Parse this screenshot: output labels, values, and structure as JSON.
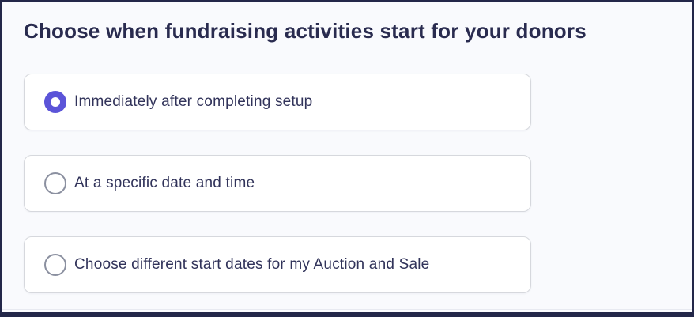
{
  "heading": "Choose when fundraising activities start for your donors",
  "options": [
    {
      "id": "immediately",
      "label": "Immediately after completing setup",
      "selected": true
    },
    {
      "id": "specific-datetime",
      "label": "At a specific date and time",
      "selected": false
    },
    {
      "id": "different-start-dates",
      "label": "Choose different start dates for my Auction and Sale",
      "selected": false
    }
  ],
  "colors": {
    "accent": "#5b54d8",
    "radio_unselected_ring": "#8b90a0",
    "heading_text": "#292b4f",
    "option_text": "#31335a",
    "card_background": "#ffffff",
    "card_border": "#d6d8dd",
    "page_background": "#f9fafd",
    "frame": "#232749"
  }
}
